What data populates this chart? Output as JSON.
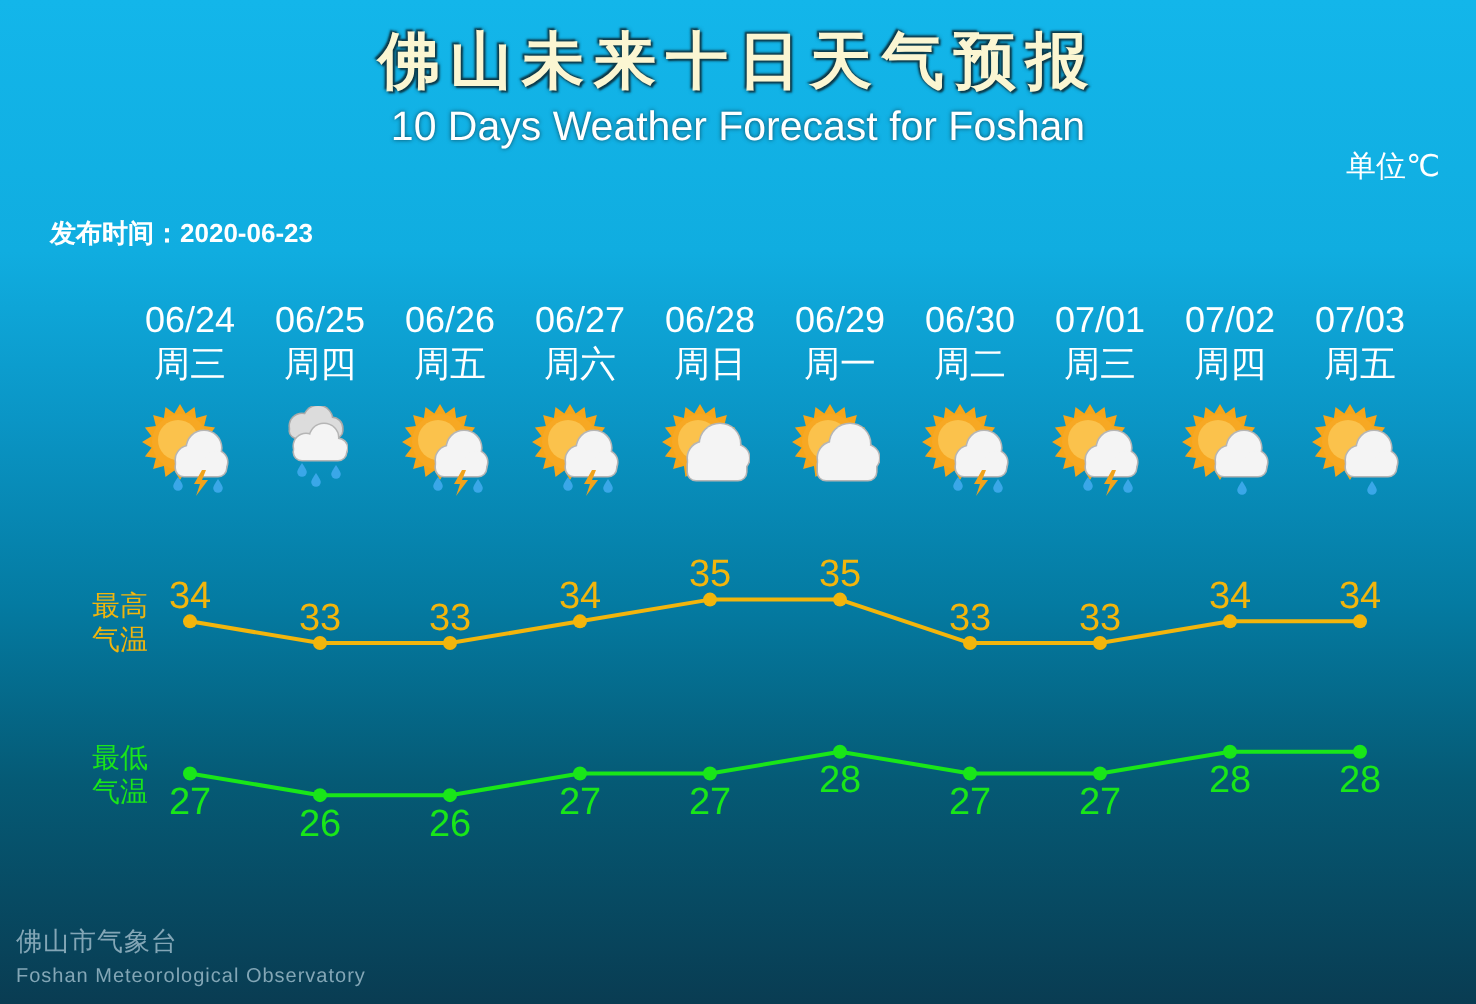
{
  "chart_data": {
    "type": "line",
    "title": "佛山未来十日天气预报",
    "subtitle": "10 Days Weather Forecast for Foshan",
    "categories": [
      "06/24\n周三",
      "06/25\n周四",
      "06/26\n周五",
      "06/27\n周六",
      "06/28\n周日",
      "06/29\n周一",
      "06/30\n周二",
      "07/01\n周三",
      "07/02\n周四",
      "07/03\n周五"
    ],
    "series": [
      {
        "name": "最高气温",
        "color": "#f2b50c",
        "values": [
          34,
          33,
          33,
          34,
          35,
          35,
          33,
          33,
          34,
          34
        ]
      },
      {
        "name": "最低气温",
        "color": "#19e619",
        "values": [
          27,
          26,
          26,
          27,
          27,
          28,
          27,
          27,
          28,
          28
        ]
      }
    ],
    "data_labels": true,
    "marker": "circle",
    "line_style": "solid",
    "grid": false,
    "legend": "left",
    "tick_labels": "x",
    "annotations": [
      "单位℃",
      "发布时间：2020-06-23",
      "佛山市气象台",
      "Foshan Meteorological Observatory"
    ]
  }
}
